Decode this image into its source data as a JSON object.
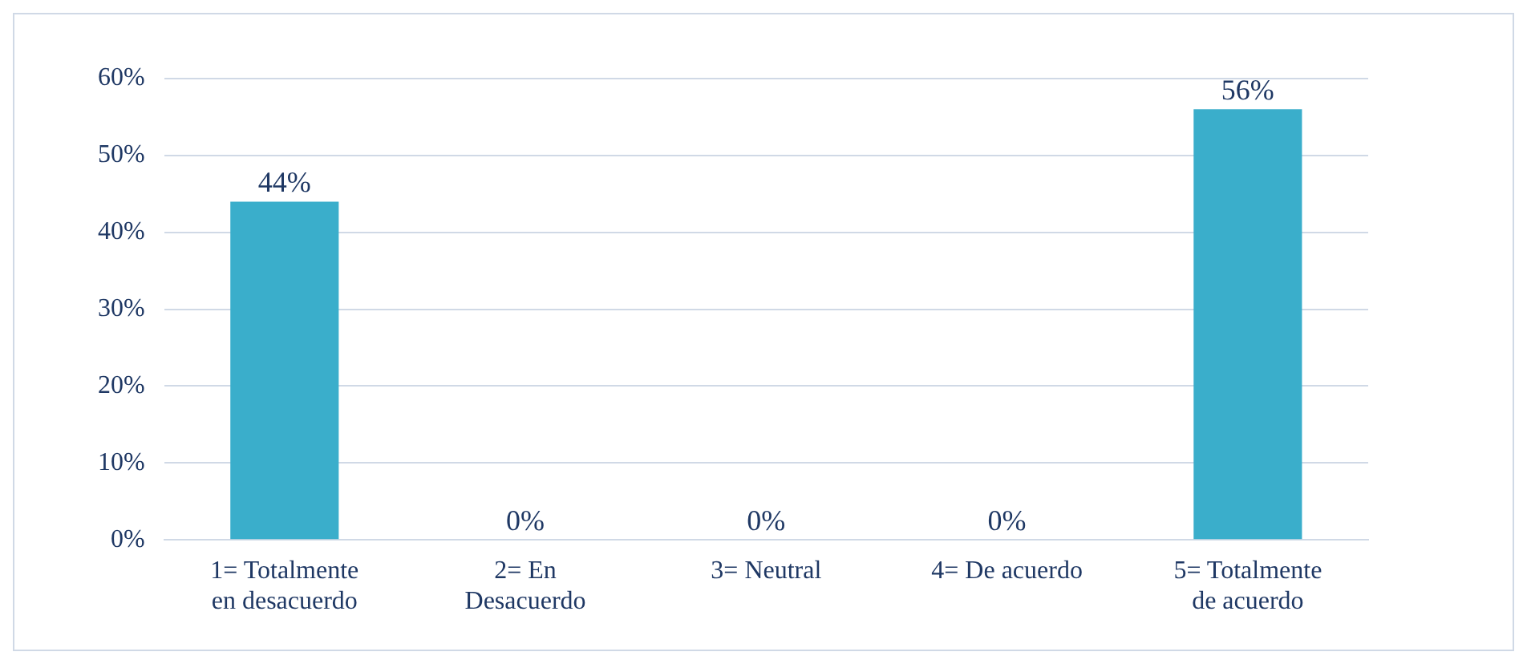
{
  "chart_data": {
    "type": "bar",
    "categories": [
      "1= Totalmente en desacuerdo",
      "2= En Desacuerdo",
      "3= Neutral",
      "4= De acuerdo",
      "5= Totalmente de acuerdo"
    ],
    "values": [
      44,
      0,
      0,
      0,
      56
    ],
    "value_labels": [
      "44%",
      "0%",
      "0%",
      "0%",
      "56%"
    ],
    "color": "#3aaecb",
    "ylim": [
      0,
      60
    ],
    "yticks": [
      {
        "value": 0,
        "label": "0%"
      },
      {
        "value": 10,
        "label": "10%"
      },
      {
        "value": 20,
        "label": "20%"
      },
      {
        "value": 30,
        "label": "30%"
      },
      {
        "value": 40,
        "label": "40%"
      },
      {
        "value": 50,
        "label": "50%"
      },
      {
        "value": 60,
        "label": "60%"
      }
    ],
    "grid": "y"
  }
}
